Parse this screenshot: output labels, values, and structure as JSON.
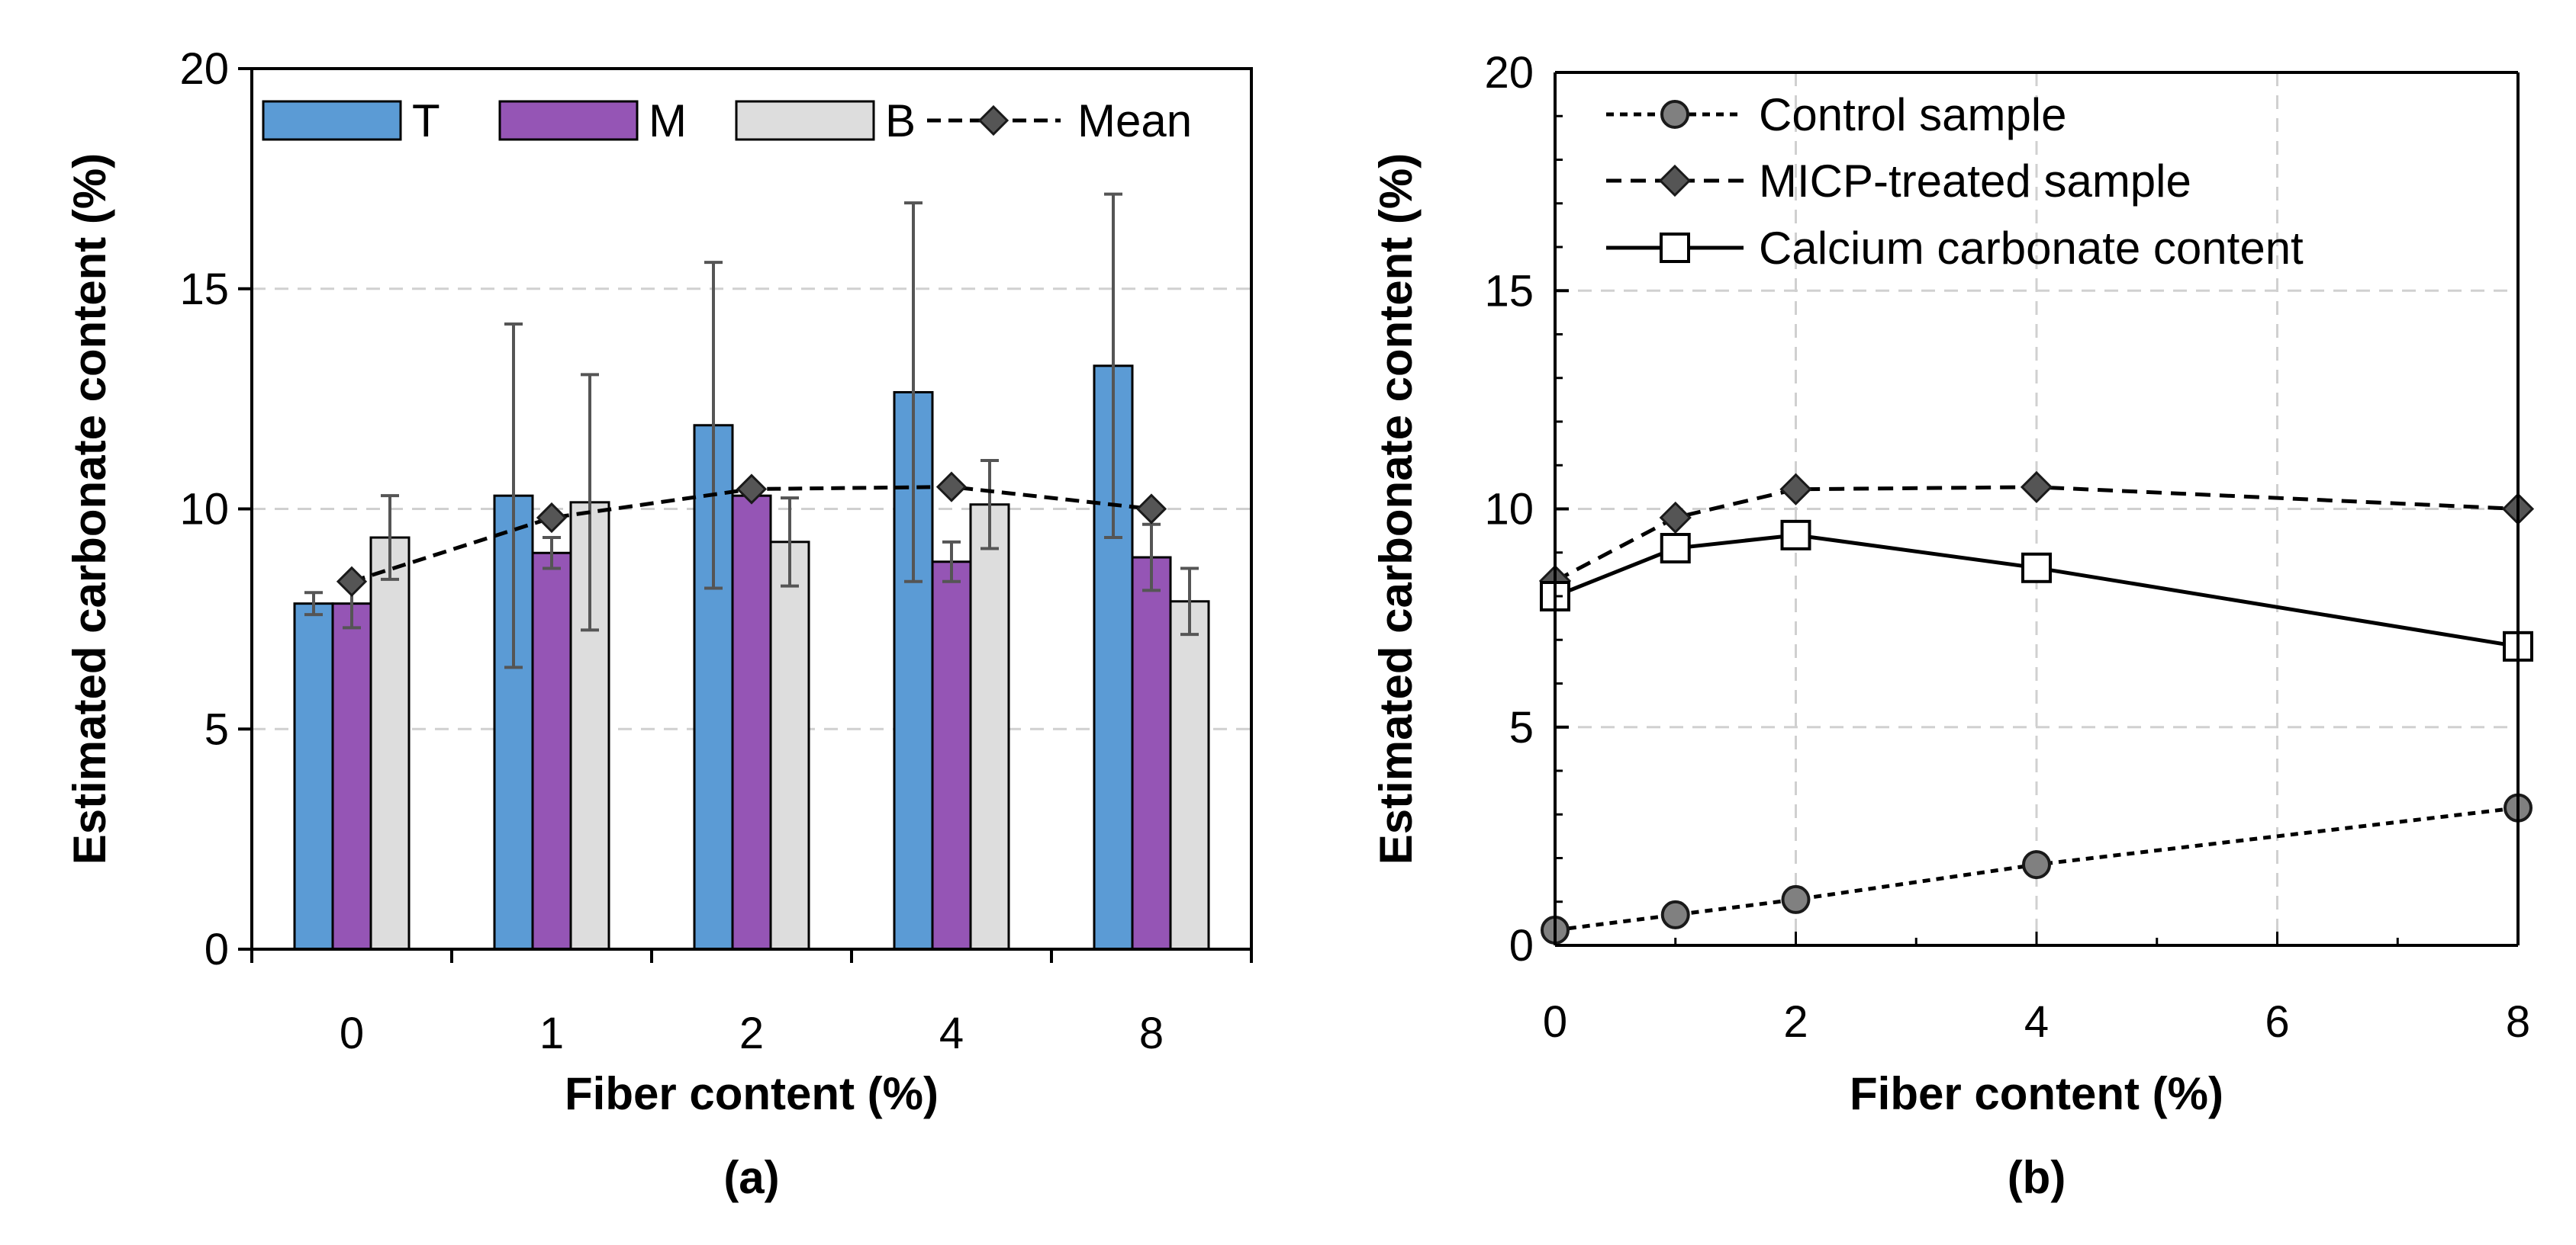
{
  "chart_data": [
    {
      "type": "bar",
      "panel_label": "(a)",
      "title": "",
      "xlabel": "Fiber content (%)",
      "ylabel": "Estimated carbonate content (%)",
      "ylim": [
        0,
        20
      ],
      "yticks": [
        "0",
        "5",
        "10",
        "15",
        "20"
      ],
      "grid": "horizontal dashed",
      "legend_position": "top",
      "categories": [
        "0",
        "1",
        "2",
        "4",
        "8"
      ],
      "colors": {
        "T": "#5b9bd5",
        "M": "#9555b5",
        "B": "#dddddd"
      },
      "series": [
        {
          "name": "T",
          "values": [
            7.85,
            10.3,
            11.9,
            12.65,
            13.25
          ],
          "error": [
            0.25,
            3.9,
            3.7,
            4.3,
            3.9
          ]
        },
        {
          "name": "M",
          "values": [
            7.85,
            9.0,
            10.3,
            8.8,
            8.9
          ],
          "error": [
            0.55,
            0.35,
            0.0,
            0.45,
            0.75
          ]
        },
        {
          "name": "B",
          "values": [
            9.35,
            10.15,
            9.25,
            10.1,
            7.9
          ],
          "error": [
            0.95,
            2.9,
            1.0,
            1.0,
            0.75
          ]
        }
      ],
      "mean_series": {
        "name": "Mean",
        "values": [
          8.35,
          9.8,
          10.45,
          10.5,
          10.0
        ]
      }
    },
    {
      "type": "line",
      "panel_label": "(b)",
      "title": "",
      "xlabel": "Fiber content (%)",
      "ylabel": "Estimated carbonate content (%)",
      "xlim": [
        0,
        8
      ],
      "ylim": [
        0,
        20
      ],
      "xticks": [
        "0",
        "2",
        "4",
        "6",
        "8"
      ],
      "yticks": [
        "0",
        "5",
        "10",
        "15",
        "20"
      ],
      "grid": "both dashed",
      "legend_position": "top-left",
      "series": [
        {
          "name": "Control sample",
          "marker": "circle",
          "line": "dotted",
          "x": [
            0,
            1,
            2,
            4,
            8
          ],
          "y": [
            0.35,
            0.7,
            1.05,
            1.85,
            3.15
          ]
        },
        {
          "name": "MICP-treated sample",
          "marker": "diamond",
          "line": "dashed",
          "x": [
            0,
            1,
            2,
            4,
            8
          ],
          "y": [
            8.35,
            9.8,
            10.45,
            10.5,
            10.0
          ]
        },
        {
          "name": "Calcium carbonate content",
          "marker": "square",
          "line": "solid",
          "x": [
            0,
            1,
            2,
            4,
            8
          ],
          "y": [
            8.0,
            9.1,
            9.4,
            8.65,
            6.85
          ]
        }
      ]
    }
  ]
}
